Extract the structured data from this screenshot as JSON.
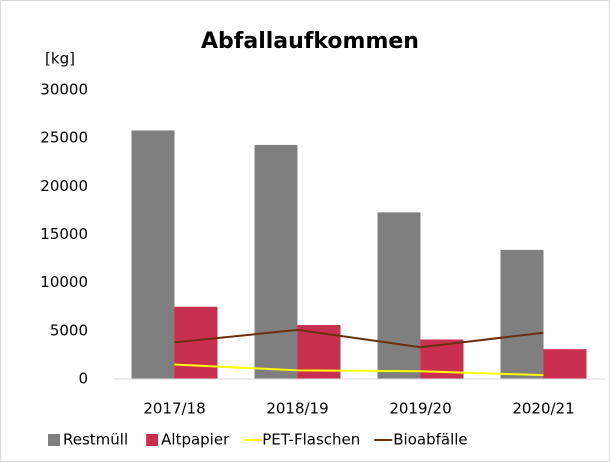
{
  "chart_data": {
    "type": "bar",
    "title": "Abfallaufkommen",
    "y_label": "[kg]",
    "categories": [
      "2017/18",
      "2018/19",
      "2019/20",
      "2020/21"
    ],
    "series": [
      {
        "name": "Restmüll",
        "color": "#7f7f7f",
        "type": "bar",
        "values": [
          25800,
          24300,
          17300,
          13400
        ]
      },
      {
        "name": "Altpapier",
        "color": "#c9304f",
        "type": "bar",
        "values": [
          7500,
          5600,
          4100,
          3100
        ]
      },
      {
        "name": "PET-Flaschen",
        "color": "#ffff00",
        "type": "line",
        "values": [
          1500,
          900,
          800,
          400
        ]
      },
      {
        "name": "Bioabfälle",
        "color": "#6b2f0f",
        "type": "line",
        "values": [
          3800,
          5100,
          3300,
          4800
        ]
      }
    ],
    "ylim": [
      0,
      30000
    ],
    "yticks": [
      0,
      5000,
      10000,
      15000,
      20000,
      25000,
      30000
    ],
    "legend": "bottom"
  }
}
